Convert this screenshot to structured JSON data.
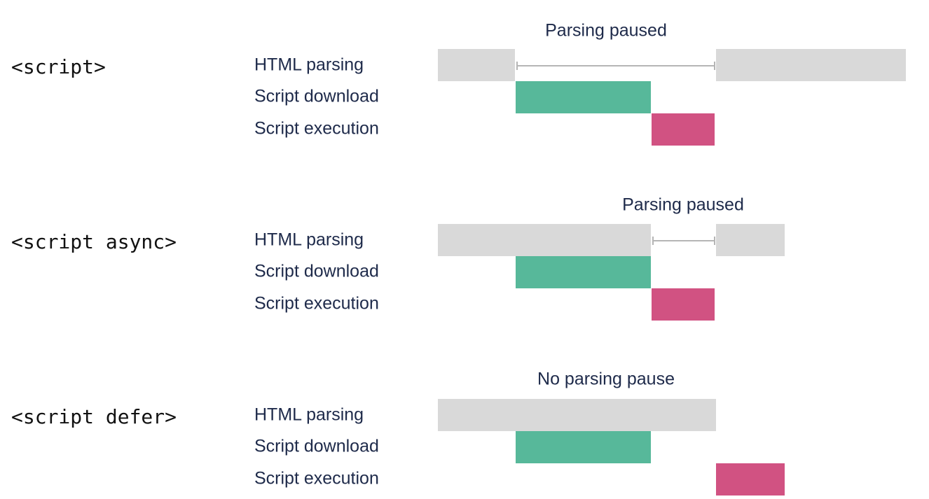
{
  "sections": [
    {
      "tag": "<script>",
      "annotation": "Parsing paused",
      "rows": [
        "HTML parsing",
        "Script download",
        "Script execution"
      ]
    },
    {
      "tag": "<script async>",
      "annotation": "Parsing paused",
      "rows": [
        "HTML parsing",
        "Script download",
        "Script execution"
      ]
    },
    {
      "tag": "<script defer>",
      "annotation": "No parsing pause",
      "rows": [
        "HTML parsing",
        "Script download",
        "Script execution"
      ]
    }
  ]
}
